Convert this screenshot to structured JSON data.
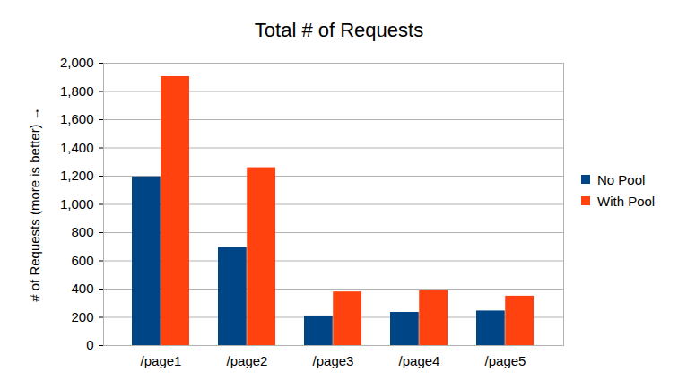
{
  "chart_data": {
    "type": "bar",
    "title": "Total # of Requests",
    "y_label": "# of Requests (more is better)",
    "categories": [
      "/page1",
      "/page2",
      "/page3",
      "/page4",
      "/page5"
    ],
    "series": [
      {
        "name": "No Pool",
        "color": "#004586",
        "values": [
          1195,
          695,
          210,
          235,
          245
        ]
      },
      {
        "name": "With Pool",
        "color": "#ff420e",
        "values": [
          1905,
          1260,
          380,
          390,
          350
        ]
      }
    ],
    "ylim": [
      0,
      2000
    ],
    "yticks": [
      0,
      200,
      400,
      600,
      800,
      {
        "value": 1000,
        "label": "1,000"
      },
      {
        "value": 1200,
        "label": "1,200"
      },
      {
        "value": 1400,
        "label": "1,400"
      },
      {
        "value": 1600,
        "label": "1,600"
      },
      {
        "value": 1800,
        "label": "1,800"
      },
      {
        "value": 2000,
        "label": "2,000"
      }
    ],
    "grid": true,
    "legend": "right"
  }
}
